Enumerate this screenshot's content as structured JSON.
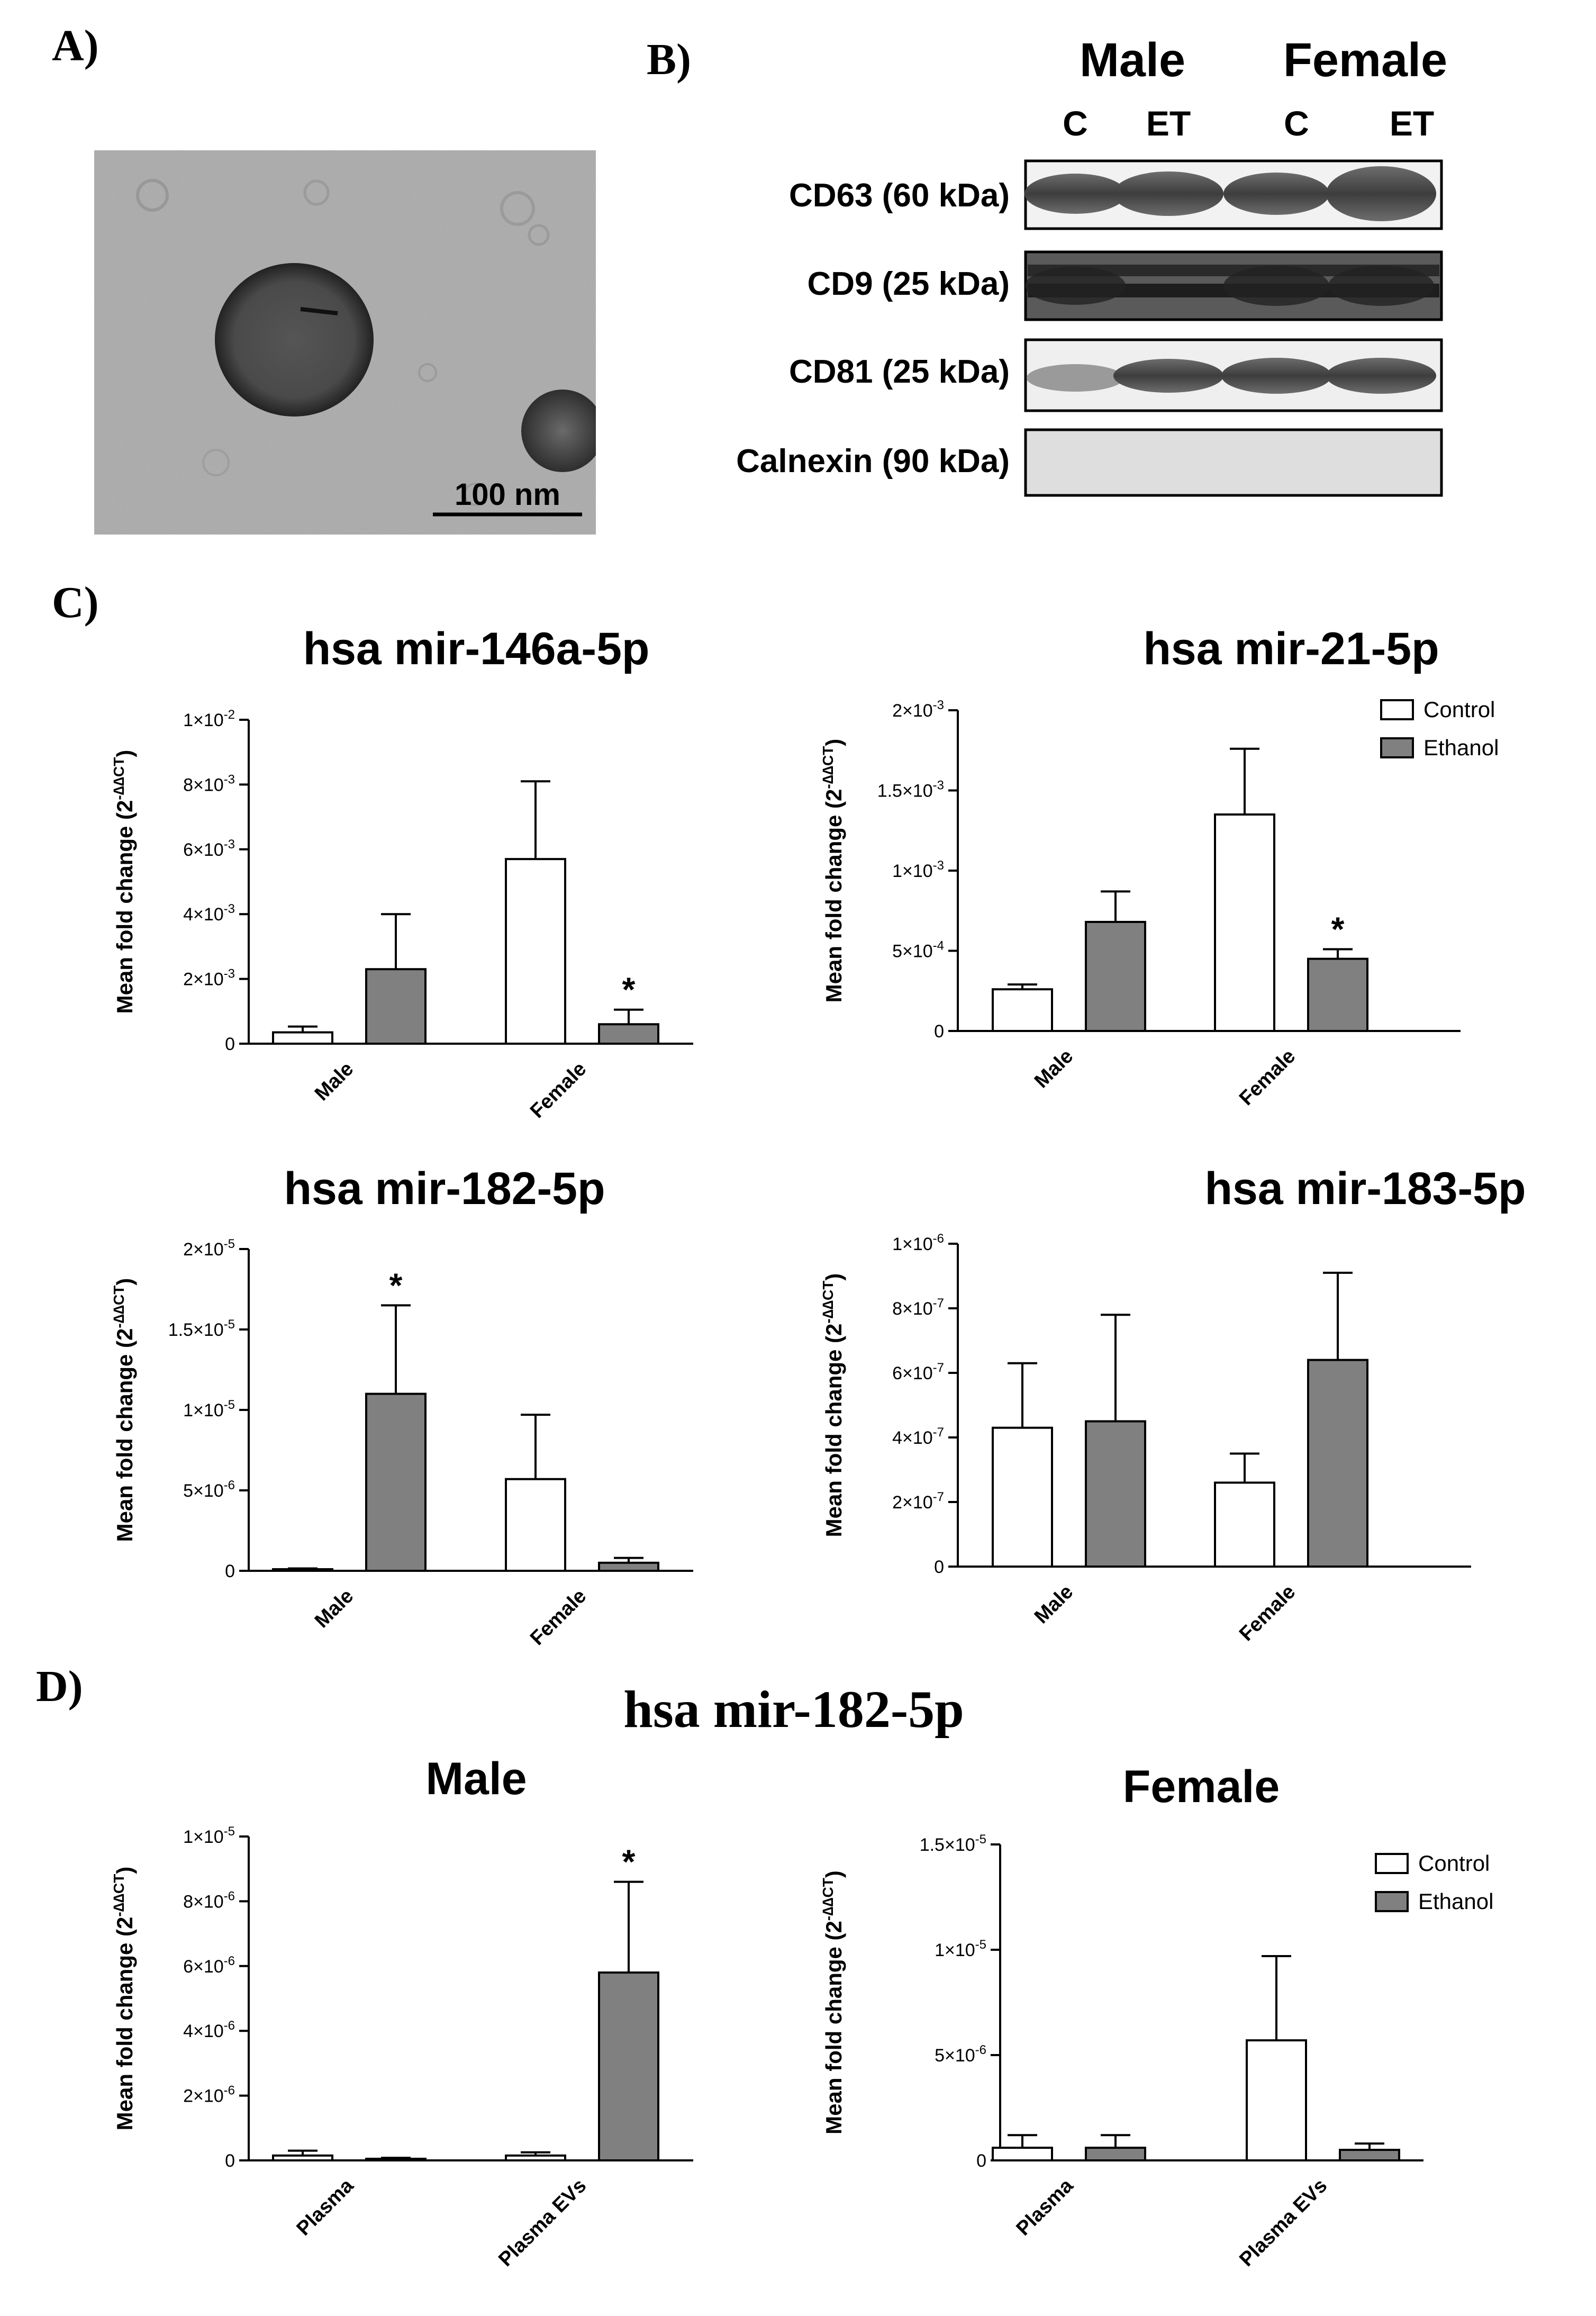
{
  "panel_labels": [
    "A)",
    "B)",
    "C)",
    "D)"
  ],
  "tem": {
    "scale_label": "100 nm"
  },
  "blot": {
    "groups": [
      "Male",
      "Female"
    ],
    "lanes": [
      "C",
      "ET",
      "C",
      "ET"
    ],
    "rows": [
      "CD63 (60 kDa)",
      "CD9 (25 kDa)",
      "CD81 (25 kDa)",
      "Calnexin (90 kDa)"
    ]
  },
  "section_d_title": "hsa mir-182-5p",
  "legend": {
    "control": "Control",
    "ethanol": "Ethanol"
  },
  "colors": {
    "control": "#ffffff",
    "ethanol": "#808080",
    "stroke": "#000000"
  },
  "ylabel_text": "Mean fold change (2",
  "ylabel_sup": "-∆∆CT",
  "ylabel_close": ")",
  "chart_data": [
    {
      "type": "bar",
      "title": "hsa mir-146a-5p",
      "categories": [
        "Male",
        "Female"
      ],
      "ylabel": "Mean fold change (2^-∆∆CT)",
      "ylim": [
        0,
        0.01
      ],
      "ticks": [
        {
          "m": "0",
          "e": ""
        },
        {
          "m": "2×10",
          "e": "-3"
        },
        {
          "m": "4×10",
          "e": "-3"
        },
        {
          "m": "6×10",
          "e": "-3"
        },
        {
          "m": "8×10",
          "e": "-3"
        },
        {
          "m": "1×10",
          "e": "-2"
        }
      ],
      "tick_values": [
        0,
        0.002,
        0.004,
        0.006,
        0.008,
        0.01
      ],
      "series": [
        {
          "name": "Control",
          "values": [
            0.00035,
            0.0057
          ],
          "errors": [
            0.00018,
            0.0024
          ]
        },
        {
          "name": "Ethanol",
          "values": [
            0.0023,
            0.0006
          ],
          "errors": [
            0.0017,
            0.00045
          ]
        }
      ],
      "significance": [
        {
          "series": 1,
          "category": 1,
          "label": "*"
        }
      ]
    },
    {
      "type": "bar",
      "title": "hsa mir-21-5p",
      "categories": [
        "Male",
        "Female"
      ],
      "ylabel": "Mean fold change (2^-∆∆CT)",
      "ylim": [
        0,
        0.002
      ],
      "ticks": [
        {
          "m": "0",
          "e": ""
        },
        {
          "m": "5×10",
          "e": "-4"
        },
        {
          "m": "1×10",
          "e": "-3"
        },
        {
          "m": "1.5×10",
          "e": "-3"
        },
        {
          "m": "2×10",
          "e": "-3"
        }
      ],
      "tick_values": [
        0,
        0.0005,
        0.001,
        0.0015,
        0.002
      ],
      "series": [
        {
          "name": "Control",
          "values": [
            0.00026,
            0.00135
          ],
          "errors": [
            3e-05,
            0.00041
          ]
        },
        {
          "name": "Ethanol",
          "values": [
            0.00068,
            0.00045
          ],
          "errors": [
            0.00019,
            6e-05
          ]
        }
      ],
      "significance": [
        {
          "series": 1,
          "category": 1,
          "label": "*"
        }
      ],
      "legend": "top-right"
    },
    {
      "type": "bar",
      "title": "hsa mir-182-5p",
      "categories": [
        "Male",
        "Female"
      ],
      "ylabel": "Mean fold change (2^-∆∆CT)",
      "ylim": [
        0,
        2e-05
      ],
      "ticks": [
        {
          "m": "0",
          "e": ""
        },
        {
          "m": "5×10",
          "e": "-6"
        },
        {
          "m": "1×10",
          "e": "-5"
        },
        {
          "m": "1.5×10",
          "e": "-5"
        },
        {
          "m": "2×10",
          "e": "-5"
        }
      ],
      "tick_values": [
        0,
        5e-06,
        1e-05,
        1.5e-05,
        2e-05
      ],
      "series": [
        {
          "name": "Control",
          "values": [
            1e-07,
            5.7e-06
          ],
          "errors": [
            5e-08,
            4e-06
          ]
        },
        {
          "name": "Ethanol",
          "values": [
            1.1e-05,
            5e-07
          ],
          "errors": [
            5.5e-06,
            3e-07
          ]
        }
      ],
      "significance": [
        {
          "series": 1,
          "category": 0,
          "label": "*"
        }
      ]
    },
    {
      "type": "bar",
      "title": "hsa mir-183-5p",
      "categories": [
        "Male",
        "Female"
      ],
      "ylabel": "Mean fold change (2^-∆∆CT)",
      "ylim": [
        0,
        1e-06
      ],
      "ticks": [
        {
          "m": "0",
          "e": ""
        },
        {
          "m": "2×10",
          "e": "-7"
        },
        {
          "m": "4×10",
          "e": "-7"
        },
        {
          "m": "6×10",
          "e": "-7"
        },
        {
          "m": "8×10",
          "e": "-7"
        },
        {
          "m": "1×10",
          "e": "-6"
        }
      ],
      "tick_values": [
        0,
        2e-07,
        4e-07,
        6e-07,
        8e-07,
        1e-06
      ],
      "series": [
        {
          "name": "Control",
          "values": [
            4.3e-07,
            2.6e-07
          ],
          "errors": [
            2e-07,
            9e-08
          ]
        },
        {
          "name": "Ethanol",
          "values": [
            4.5e-07,
            6.4e-07
          ],
          "errors": [
            3.3e-07,
            2.7e-07
          ]
        }
      ],
      "significance": []
    },
    {
      "type": "bar",
      "title": "Male",
      "categories": [
        "Plasma",
        "Plasma EVs"
      ],
      "ylabel": "Mean fold change (2^-∆∆CT)",
      "ylim": [
        0,
        1e-05
      ],
      "ticks": [
        {
          "m": "0",
          "e": ""
        },
        {
          "m": "2×10",
          "e": "-6"
        },
        {
          "m": "4×10",
          "e": "-6"
        },
        {
          "m": "6×10",
          "e": "-6"
        },
        {
          "m": "8×10",
          "e": "-6"
        },
        {
          "m": "1×10",
          "e": "-5"
        }
      ],
      "tick_values": [
        0,
        2e-06,
        4e-06,
        6e-06,
        8e-06,
        1e-05
      ],
      "series": [
        {
          "name": "Control",
          "values": [
            1.5e-07,
            1.5e-07
          ],
          "errors": [
            1.5e-07,
            1e-07
          ]
        },
        {
          "name": "Ethanol",
          "values": [
            5e-08,
            5.8e-06
          ],
          "errors": [
            3e-08,
            2.8e-06
          ]
        }
      ],
      "significance": [
        {
          "series": 1,
          "category": 1,
          "label": "*"
        }
      ]
    },
    {
      "type": "bar",
      "title": "Female",
      "categories": [
        "Plasma",
        "Plasma EVs"
      ],
      "ylabel": "Mean fold change (2^-∆∆CT)",
      "ylim": [
        0,
        1.5e-05
      ],
      "ticks": [
        {
          "m": "0",
          "e": ""
        },
        {
          "m": "5×10",
          "e": "-6"
        },
        {
          "m": "1×10",
          "e": "-5"
        },
        {
          "m": "1.5×10",
          "e": "-5"
        }
      ],
      "tick_values": [
        0,
        5e-06,
        1e-05,
        1.5e-05
      ],
      "series": [
        {
          "name": "Control",
          "values": [
            6e-07,
            5.7e-06
          ],
          "errors": [
            6e-07,
            4e-06
          ]
        },
        {
          "name": "Ethanol",
          "values": [
            6e-07,
            5e-07
          ],
          "errors": [
            6e-07,
            3e-07
          ]
        }
      ],
      "significance": [],
      "legend": "top-right"
    }
  ]
}
